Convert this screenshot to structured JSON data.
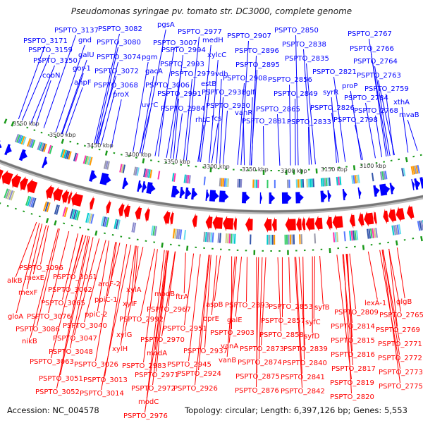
{
  "title": "Pseudomonas syringae pv. tomato str. DC3000, complete genome",
  "footer": {
    "accession": "Accession: NC_004578",
    "summary": "Topology: circular; Length: 6,397,126 bp; Genes: 5,553"
  },
  "scale_labels": [
    "3550 kbp",
    "3500 kbp",
    "3450 kbp",
    "3400 kbp",
    "3350 kbp",
    "3300 kbp",
    "3250 kbp",
    "3200 kbp",
    "3150 kbp",
    "3100 kbp"
  ],
  "forward_genes": [
    "PSPTO_3137",
    "PSPTO_3082",
    "pgsA",
    "PSPTO_2977",
    "PSPTO_3171",
    "gnd",
    "PSPTO_3080",
    "PSPTO_3007",
    "medH",
    "PSPTO_3159",
    "galU",
    "PSPTO_3074",
    "pgm",
    "PSPTO_2994",
    "PSPTO_3150",
    "gor-1",
    "PSPTO_3072",
    "gacA",
    "PSPTO_2993",
    "xylcC",
    "PSPTO_2979",
    "vdh",
    "cobN",
    "ahpF",
    "PSPTO_3068",
    "PSPTO_3006",
    "estB",
    "proX",
    "PSPTO_2991",
    "PSPTO_2938",
    "uvrC",
    "PSPTO_2984",
    "rhtC",
    "PSPTO_2930",
    "fcs",
    "PSPTO_2907",
    "PSPTO_2850",
    "PSPTO_2767",
    "PSPTO_2896",
    "PSPTO_2838",
    "PSPTO_2766",
    "PSPTO_2895",
    "PSPTO_2835",
    "PSPTO_2764",
    "PSPTO_2908",
    "PSPTO_2856",
    "PSPTO_2821",
    "PSPTO_2763",
    "glf",
    "PSPTO_2849",
    "syrR",
    "proP",
    "PSPTO_2759",
    "PSPTO_2784",
    "xthA",
    "vanR",
    "PSPTO_2865",
    "PSPTO_2826",
    "PSPTO_2768",
    "mvaB",
    "PSPTO_2881",
    "PSPTO_2833",
    "PSPTO_2798"
  ],
  "reverse_genes": [
    "PSPTO_3096",
    "alkB",
    "mexE",
    "PSPTO_3061",
    "mexF",
    "PSPTO_3062",
    "aroF-2",
    "xylA",
    "modB",
    "ftrA",
    "ppiC-1",
    "PSPTO_3065",
    "xylF",
    "PSPTO_2967",
    "gloA",
    "PSPTO_3076",
    "ppiC-2",
    "PSPTO_2992",
    "PSPTO_3040",
    "PSPTO_3086",
    "PSPTO_2951",
    "nikB",
    "PSPTO_3047",
    "xylG",
    "PSPTO_2970",
    "xylH",
    "PSPTO_3048",
    "modA",
    "PSPTO_3063",
    "PSPTO_3026",
    "PSPTO_2983",
    "PSPTO_2945",
    "PSPTO_3051",
    "PSPTO_3013",
    "PSPTO_2971",
    "PSPTO_3052",
    "PSPTO_3014",
    "PSPTO_2972",
    "modC",
    "PSPTO_2976",
    "aspB",
    "PSPTO_2893",
    "PSPTO_2853",
    "syfB",
    "lexA-1",
    "glgB",
    "oprE",
    "galE",
    "PSPTO_2857",
    "syfC",
    "PSPTO_2809",
    "PSPTO_2765",
    "PSPTO_2903",
    "PSPTO_2858",
    "syfD",
    "PSPTO_2814",
    "PSPTO_2769",
    "PSPTO_2937",
    "vanA",
    "PSPTO_2873",
    "PSPTO_2839",
    "PSPTO_2815",
    "PSPTO_2771",
    "vanB",
    "PSPTO_2874",
    "PSPTO_2840",
    "PSPTO_2816",
    "PSPTO_2772",
    "PSPTO_2924",
    "PSPTO_2875",
    "PSPTO_2841",
    "PSPTO_2817",
    "PSPTO_2773",
    "PSPTO_2926",
    "PSPTO_2876",
    "PSPTO_2842",
    "PSPTO_2819",
    "PSPTO_2775",
    "PSPTO_2820"
  ],
  "colors": {
    "forward": "#0000ff",
    "reverse": "#ff0000",
    "backbone": "#888888",
    "gc_marks": "#1a9a1a"
  }
}
